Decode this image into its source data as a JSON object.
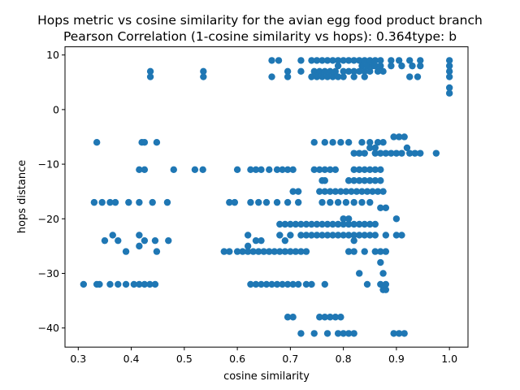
{
  "chart_data": {
    "type": "scatter",
    "title_line1": "Hops metric vs cosine similarity for the avian egg food product branch",
    "title_line2": "Pearson Correlation (1-cosine similarity vs hops): 0.364type: b",
    "xlabel": "cosine similarity",
    "ylabel": "hops distance",
    "xlim": [
      0.275,
      1.035
    ],
    "ylim": [
      -43.5,
      11.5
    ],
    "xticks": [
      0.3,
      0.4,
      0.5,
      0.6,
      0.7,
      0.8,
      0.9,
      1.0
    ],
    "xtick_labels": [
      "0.3",
      "0.4",
      "0.5",
      "0.6",
      "0.7",
      "0.8",
      "0.9",
      "1.0"
    ],
    "yticks": [
      10,
      0,
      -10,
      -20,
      -30,
      -40
    ],
    "ytick_labels": [
      "10",
      "0",
      "−10",
      "−20",
      "−30",
      "−40"
    ],
    "grid": false,
    "marker_color": "#1f77b4",
    "points": [
      [
        0.436,
        7
      ],
      [
        0.436,
        6
      ],
      [
        0.536,
        7
      ],
      [
        0.536,
        6
      ],
      [
        0.665,
        9
      ],
      [
        0.678,
        9
      ],
      [
        0.665,
        6
      ],
      [
        0.695,
        7
      ],
      [
        0.695,
        6
      ],
      [
        0.72,
        9
      ],
      [
        0.72,
        7
      ],
      [
        0.74,
        9
      ],
      [
        0.75,
        9
      ],
      [
        0.76,
        9
      ],
      [
        0.77,
        9
      ],
      [
        0.78,
        9
      ],
      [
        0.79,
        9
      ],
      [
        0.8,
        9
      ],
      [
        0.81,
        9
      ],
      [
        0.82,
        9
      ],
      [
        0.83,
        9
      ],
      [
        0.84,
        9
      ],
      [
        0.85,
        9
      ],
      [
        0.86,
        9
      ],
      [
        0.87,
        9
      ],
      [
        0.89,
        9
      ],
      [
        0.905,
        9
      ],
      [
        0.925,
        9
      ],
      [
        0.945,
        9
      ],
      [
        0.74,
        6
      ],
      [
        0.75,
        6
      ],
      [
        0.76,
        6
      ],
      [
        0.77,
        6
      ],
      [
        0.78,
        6
      ],
      [
        0.79,
        6
      ],
      [
        0.8,
        6
      ],
      [
        0.82,
        6
      ],
      [
        0.84,
        6
      ],
      [
        0.745,
        7
      ],
      [
        0.755,
        7
      ],
      [
        0.765,
        7
      ],
      [
        0.775,
        7
      ],
      [
        0.785,
        7
      ],
      [
        0.79,
        8
      ],
      [
        0.8,
        7
      ],
      [
        0.81,
        7
      ],
      [
        0.82,
        7
      ],
      [
        0.83,
        7
      ],
      [
        0.835,
        8
      ],
      [
        0.84,
        7
      ],
      [
        0.845,
        8
      ],
      [
        0.85,
        7
      ],
      [
        0.855,
        8
      ],
      [
        0.86,
        8
      ],
      [
        0.865,
        7
      ],
      [
        0.87,
        8
      ],
      [
        0.875,
        7
      ],
      [
        0.89,
        8
      ],
      [
        0.91,
        8
      ],
      [
        0.93,
        8
      ],
      [
        0.945,
        8
      ],
      [
        0.925,
        6
      ],
      [
        0.94,
        6
      ],
      [
        1.0,
        9
      ],
      [
        1.0,
        8
      ],
      [
        1.0,
        7
      ],
      [
        1.0,
        6
      ],
      [
        1.0,
        4
      ],
      [
        1.0,
        3
      ],
      [
        0.335,
        -6
      ],
      [
        0.42,
        -6
      ],
      [
        0.425,
        -6
      ],
      [
        0.448,
        -6
      ],
      [
        0.415,
        -11
      ],
      [
        0.425,
        -11
      ],
      [
        0.48,
        -11
      ],
      [
        0.52,
        -11
      ],
      [
        0.535,
        -11
      ],
      [
        0.6,
        -11
      ],
      [
        0.625,
        -11
      ],
      [
        0.635,
        -11
      ],
      [
        0.645,
        -11
      ],
      [
        0.66,
        -11
      ],
      [
        0.675,
        -11
      ],
      [
        0.685,
        -11
      ],
      [
        0.695,
        -11
      ],
      [
        0.705,
        -11
      ],
      [
        0.745,
        -11
      ],
      [
        0.755,
        -11
      ],
      [
        0.765,
        -11
      ],
      [
        0.775,
        -11
      ],
      [
        0.785,
        -11
      ],
      [
        0.82,
        -11
      ],
      [
        0.83,
        -11
      ],
      [
        0.84,
        -11
      ],
      [
        0.85,
        -11
      ],
      [
        0.86,
        -11
      ],
      [
        0.87,
        -11
      ],
      [
        0.745,
        -6
      ],
      [
        0.765,
        -6
      ],
      [
        0.78,
        -6
      ],
      [
        0.795,
        -6
      ],
      [
        0.81,
        -6
      ],
      [
        0.835,
        -6
      ],
      [
        0.85,
        -6
      ],
      [
        0.865,
        -6
      ],
      [
        0.875,
        -6
      ],
      [
        0.895,
        -5
      ],
      [
        0.905,
        -5
      ],
      [
        0.915,
        -5
      ],
      [
        0.82,
        -8
      ],
      [
        0.83,
        -8
      ],
      [
        0.84,
        -8
      ],
      [
        0.85,
        -7
      ],
      [
        0.86,
        -7
      ],
      [
        0.86,
        -8
      ],
      [
        0.87,
        -8
      ],
      [
        0.88,
        -8
      ],
      [
        0.89,
        -8
      ],
      [
        0.9,
        -8
      ],
      [
        0.91,
        -8
      ],
      [
        0.92,
        -7
      ],
      [
        0.925,
        -8
      ],
      [
        0.935,
        -8
      ],
      [
        0.945,
        -8
      ],
      [
        0.975,
        -8
      ],
      [
        0.33,
        -17
      ],
      [
        0.345,
        -17
      ],
      [
        0.36,
        -17
      ],
      [
        0.37,
        -17
      ],
      [
        0.395,
        -17
      ],
      [
        0.415,
        -17
      ],
      [
        0.44,
        -17
      ],
      [
        0.468,
        -17
      ],
      [
        0.585,
        -17
      ],
      [
        0.595,
        -17
      ],
      [
        0.625,
        -17
      ],
      [
        0.64,
        -17
      ],
      [
        0.655,
        -17
      ],
      [
        0.675,
        -17
      ],
      [
        0.695,
        -17
      ],
      [
        0.715,
        -17
      ],
      [
        0.705,
        -15
      ],
      [
        0.715,
        -15
      ],
      [
        0.76,
        -13
      ],
      [
        0.765,
        -13
      ],
      [
        0.755,
        -15
      ],
      [
        0.765,
        -15
      ],
      [
        0.775,
        -15
      ],
      [
        0.785,
        -15
      ],
      [
        0.795,
        -15
      ],
      [
        0.805,
        -15
      ],
      [
        0.815,
        -15
      ],
      [
        0.825,
        -15
      ],
      [
        0.835,
        -15
      ],
      [
        0.845,
        -15
      ],
      [
        0.855,
        -15
      ],
      [
        0.865,
        -15
      ],
      [
        0.875,
        -15
      ],
      [
        0.81,
        -13
      ],
      [
        0.82,
        -13
      ],
      [
        0.83,
        -13
      ],
      [
        0.84,
        -13
      ],
      [
        0.85,
        -13
      ],
      [
        0.86,
        -13
      ],
      [
        0.87,
        -13
      ],
      [
        0.76,
        -17
      ],
      [
        0.775,
        -17
      ],
      [
        0.79,
        -17
      ],
      [
        0.805,
        -17
      ],
      [
        0.82,
        -17
      ],
      [
        0.835,
        -17
      ],
      [
        0.85,
        -17
      ],
      [
        0.87,
        -18
      ],
      [
        0.88,
        -18
      ],
      [
        0.35,
        -24
      ],
      [
        0.365,
        -23
      ],
      [
        0.375,
        -24
      ],
      [
        0.415,
        -23
      ],
      [
        0.415,
        -25
      ],
      [
        0.425,
        -24
      ],
      [
        0.445,
        -24
      ],
      [
        0.448,
        -26
      ],
      [
        0.47,
        -24
      ],
      [
        0.39,
        -26
      ],
      [
        0.635,
        -24
      ],
      [
        0.645,
        -24
      ],
      [
        0.62,
        -23
      ],
      [
        0.62,
        -25
      ],
      [
        0.68,
        -21
      ],
      [
        0.69,
        -21
      ],
      [
        0.7,
        -21
      ],
      [
        0.71,
        -21
      ],
      [
        0.72,
        -21
      ],
      [
        0.73,
        -21
      ],
      [
        0.74,
        -21
      ],
      [
        0.75,
        -21
      ],
      [
        0.76,
        -21
      ],
      [
        0.77,
        -21
      ],
      [
        0.78,
        -21
      ],
      [
        0.79,
        -21
      ],
      [
        0.8,
        -21
      ],
      [
        0.81,
        -21
      ],
      [
        0.82,
        -21
      ],
      [
        0.83,
        -21
      ],
      [
        0.84,
        -21
      ],
      [
        0.85,
        -21
      ],
      [
        0.86,
        -21
      ],
      [
        0.8,
        -20
      ],
      [
        0.81,
        -20
      ],
      [
        0.68,
        -23
      ],
      [
        0.69,
        -24
      ],
      [
        0.7,
        -23
      ],
      [
        0.72,
        -23
      ],
      [
        0.73,
        -23
      ],
      [
        0.74,
        -23
      ],
      [
        0.75,
        -23
      ],
      [
        0.76,
        -23
      ],
      [
        0.77,
        -23
      ],
      [
        0.78,
        -23
      ],
      [
        0.79,
        -23
      ],
      [
        0.8,
        -23
      ],
      [
        0.81,
        -23
      ],
      [
        0.82,
        -23
      ],
      [
        0.83,
        -23
      ],
      [
        0.84,
        -23
      ],
      [
        0.85,
        -23
      ],
      [
        0.86,
        -23
      ],
      [
        0.88,
        -23
      ],
      [
        0.9,
        -23
      ],
      [
        0.91,
        -23
      ],
      [
        0.9,
        -20
      ],
      [
        0.82,
        -24
      ],
      [
        0.575,
        -26
      ],
      [
        0.585,
        -26
      ],
      [
        0.6,
        -26
      ],
      [
        0.61,
        -26
      ],
      [
        0.62,
        -26
      ],
      [
        0.63,
        -26
      ],
      [
        0.64,
        -26
      ],
      [
        0.65,
        -26
      ],
      [
        0.66,
        -26
      ],
      [
        0.67,
        -26
      ],
      [
        0.68,
        -26
      ],
      [
        0.69,
        -26
      ],
      [
        0.7,
        -26
      ],
      [
        0.71,
        -26
      ],
      [
        0.72,
        -26
      ],
      [
        0.73,
        -26
      ],
      [
        0.81,
        -26
      ],
      [
        0.82,
        -26
      ],
      [
        0.84,
        -26
      ],
      [
        0.86,
        -26
      ],
      [
        0.87,
        -26
      ],
      [
        0.88,
        -26
      ],
      [
        0.87,
        -28
      ],
      [
        0.31,
        -32
      ],
      [
        0.335,
        -32
      ],
      [
        0.34,
        -32
      ],
      [
        0.36,
        -32
      ],
      [
        0.375,
        -32
      ],
      [
        0.39,
        -32
      ],
      [
        0.405,
        -32
      ],
      [
        0.415,
        -32
      ],
      [
        0.425,
        -32
      ],
      [
        0.435,
        -32
      ],
      [
        0.445,
        -32
      ],
      [
        0.625,
        -32
      ],
      [
        0.635,
        -32
      ],
      [
        0.645,
        -32
      ],
      [
        0.655,
        -32
      ],
      [
        0.665,
        -32
      ],
      [
        0.675,
        -32
      ],
      [
        0.685,
        -32
      ],
      [
        0.695,
        -32
      ],
      [
        0.705,
        -32
      ],
      [
        0.715,
        -32
      ],
      [
        0.73,
        -32
      ],
      [
        0.74,
        -32
      ],
      [
        0.765,
        -32
      ],
      [
        0.83,
        -30
      ],
      [
        0.845,
        -32
      ],
      [
        0.87,
        -32
      ],
      [
        0.875,
        -33
      ],
      [
        0.88,
        -32
      ],
      [
        0.88,
        -33
      ],
      [
        0.875,
        -30
      ],
      [
        0.695,
        -38
      ],
      [
        0.705,
        -38
      ],
      [
        0.755,
        -38
      ],
      [
        0.765,
        -38
      ],
      [
        0.775,
        -38
      ],
      [
        0.785,
        -38
      ],
      [
        0.795,
        -38
      ],
      [
        0.72,
        -41
      ],
      [
        0.745,
        -41
      ],
      [
        0.77,
        -41
      ],
      [
        0.79,
        -41
      ],
      [
        0.8,
        -41
      ],
      [
        0.81,
        -41
      ],
      [
        0.82,
        -41
      ],
      [
        0.895,
        -41
      ],
      [
        0.905,
        -41
      ],
      [
        0.915,
        -41
      ]
    ]
  }
}
